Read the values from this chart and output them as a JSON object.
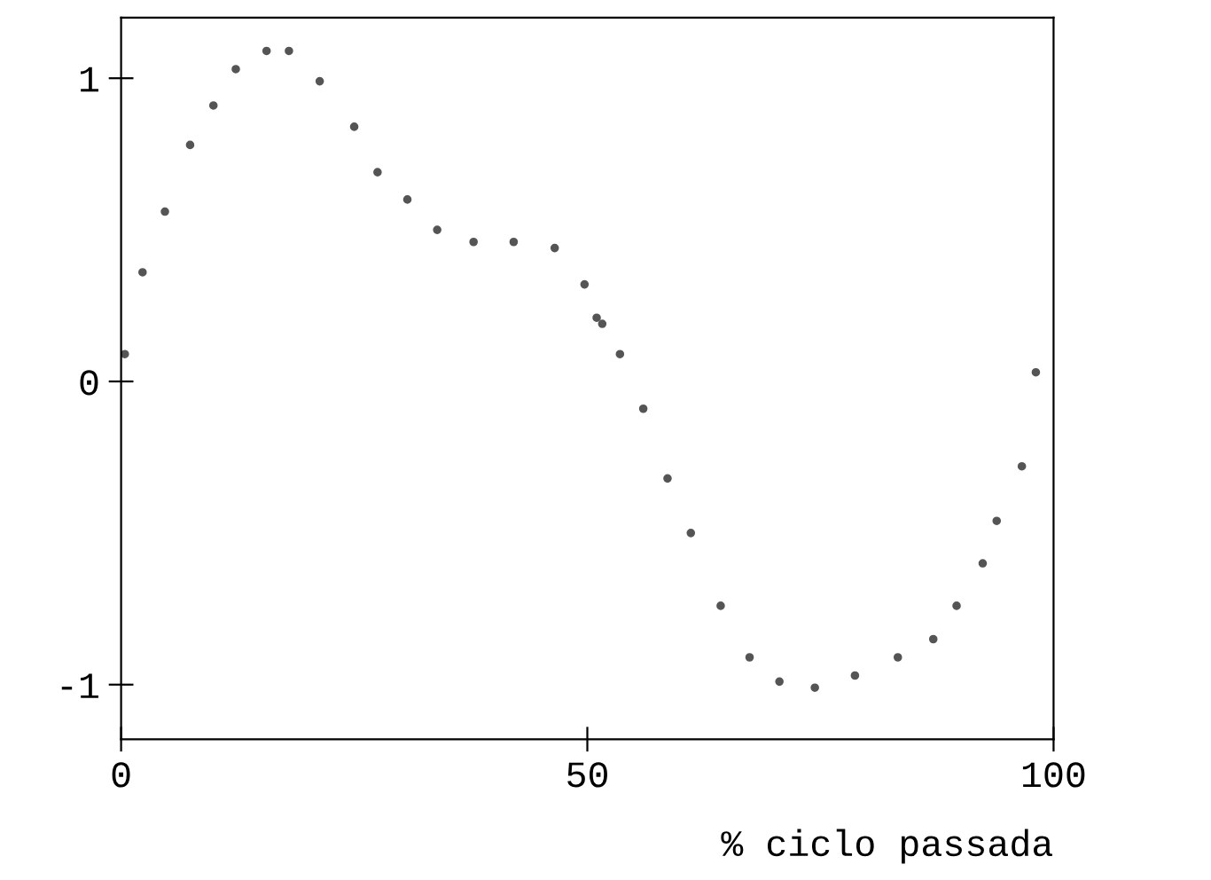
{
  "chart_data": {
    "type": "scatter",
    "xlabel": "% ciclo passada",
    "x": [
      0.4,
      2.3,
      4.7,
      7.4,
      9.9,
      12.3,
      15.6,
      18,
      21.3,
      25,
      27.5,
      30.7,
      33.9,
      37.8,
      42.1,
      46.5,
      49.7,
      51,
      51.6,
      53.5,
      56,
      58.6,
      61.1,
      64.3,
      67.4,
      70.6,
      74.4,
      78.7,
      83.3,
      87.1,
      89.6,
      92.4,
      93.9,
      96.6,
      98.1
    ],
    "series": [
      {
        "color": "#555555",
        "values": [
          0.09,
          0.36,
          0.56,
          0.78,
          0.91,
          1.03,
          1.09,
          1.09,
          0.99,
          0.84,
          0.69,
          0.6,
          0.5,
          0.46,
          0.46,
          0.44,
          0.32,
          0.21,
          0.19,
          0.09,
          -0.09,
          -0.32,
          -0.5,
          -0.74,
          -0.91,
          -0.99,
          -1.01,
          -0.97,
          -0.91,
          -0.85,
          -0.74,
          -0.6,
          -0.46,
          -0.28,
          0.03
        ]
      }
    ],
    "xlim": [
      0,
      100
    ],
    "xticks": [
      0,
      50,
      100
    ],
    "ylim": [
      -1.18,
      1.2
    ],
    "yticks": [
      -1,
      0,
      1
    ],
    "marker": "circle",
    "grid": false,
    "legend": false
  }
}
